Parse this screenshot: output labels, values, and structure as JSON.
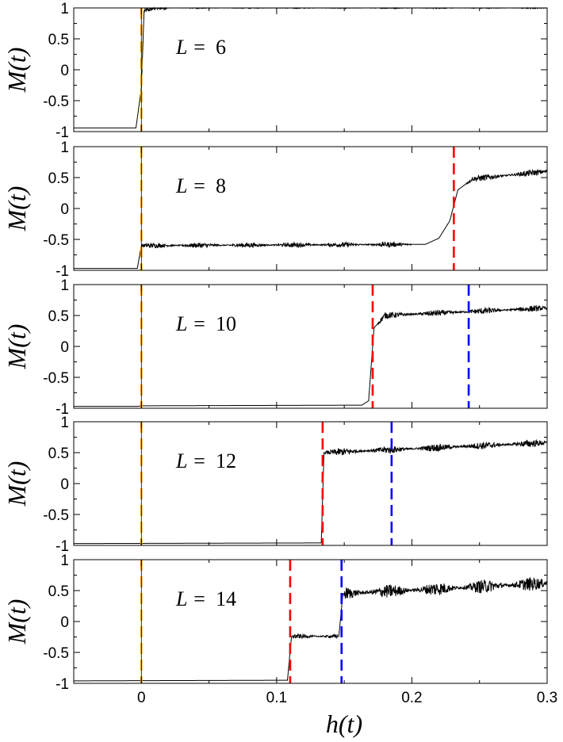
{
  "chart_data": {
    "type": "line",
    "xlabel": "h(t)",
    "ylabel": "M(t)",
    "xlim": [
      -0.05,
      0.3
    ],
    "ylim": [
      -1,
      1
    ],
    "x_ticks": [
      0,
      0.1,
      0.2,
      0.3
    ],
    "x_tick_labels": [
      "0",
      "0.1",
      "0.2",
      "0.3"
    ],
    "y_ticks": [
      1,
      0.5,
      0,
      -0.5,
      -1
    ],
    "y_tick_labels": [
      "1",
      "0.5",
      "0",
      "-0.5",
      "-1"
    ],
    "grid": false,
    "colors": {
      "trace": "#000000",
      "orange": "#FFA500",
      "red": "#FF0000",
      "blue": "#0000FF"
    },
    "panels": [
      {
        "label_prefix": "L =",
        "L": "6",
        "trace": [
          [
            -0.05,
            -0.94
          ],
          [
            -0.004,
            -0.94
          ],
          [
            0,
            -0.3
          ],
          [
            0.002,
            0.95
          ],
          [
            0.01,
            1.0
          ],
          [
            0.3,
            1.0
          ]
        ],
        "noise": [
          [
            0.002,
            0.02,
            0.04
          ],
          [
            0.02,
            0.3,
            0.012
          ]
        ],
        "vlines": [
          {
            "x": 0,
            "color": "orange"
          }
        ]
      },
      {
        "label_prefix": "L =",
        "L": "8",
        "trace": [
          [
            -0.05,
            -0.97
          ],
          [
            -0.003,
            -0.97
          ],
          [
            0,
            -0.6
          ],
          [
            0.21,
            -0.58
          ],
          [
            0.22,
            -0.48
          ],
          [
            0.228,
            -0.2
          ],
          [
            0.234,
            0.3
          ],
          [
            0.245,
            0.48
          ],
          [
            0.3,
            0.6
          ]
        ],
        "noise": [
          [
            0.0,
            0.2,
            0.04
          ],
          [
            0.24,
            0.3,
            0.05
          ]
        ],
        "vlines": [
          {
            "x": 0,
            "color": "orange"
          },
          {
            "x": 0.231,
            "color": "red"
          }
        ]
      },
      {
        "label_prefix": "L =",
        "L": "10",
        "trace": [
          [
            -0.05,
            -0.97
          ],
          [
            -0.003,
            -0.97
          ],
          [
            0,
            -0.96
          ],
          [
            0.163,
            -0.95
          ],
          [
            0.168,
            -0.88
          ],
          [
            0.172,
            0.3
          ],
          [
            0.18,
            0.5
          ],
          [
            0.3,
            0.62
          ]
        ],
        "noise": [
          [
            0.175,
            0.3,
            0.05
          ]
        ],
        "vlines": [
          {
            "x": 0,
            "color": "orange"
          },
          {
            "x": 0.171,
            "color": "red"
          },
          {
            "x": 0.242,
            "color": "blue"
          }
        ]
      },
      {
        "label_prefix": "L =",
        "L": "12",
        "trace": [
          [
            -0.05,
            -0.97
          ],
          [
            0.133,
            -0.96
          ],
          [
            0.135,
            0.5
          ],
          [
            0.3,
            0.66
          ]
        ],
        "noise": [
          [
            0.136,
            0.3,
            0.06
          ]
        ],
        "vlines": [
          {
            "x": 0,
            "color": "orange"
          },
          {
            "x": 0.134,
            "color": "red"
          },
          {
            "x": 0.185,
            "color": "blue"
          }
        ]
      },
      {
        "label_prefix": "L =",
        "L": "14",
        "trace": [
          [
            -0.05,
            -0.96
          ],
          [
            0.108,
            -0.95
          ],
          [
            0.111,
            -0.24
          ],
          [
            0.146,
            -0.24
          ],
          [
            0.149,
            0.45
          ],
          [
            0.3,
            0.62
          ]
        ],
        "noise": [
          [
            0.112,
            0.145,
            0.04
          ],
          [
            0.15,
            0.3,
            0.11
          ]
        ],
        "vlines": [
          {
            "x": 0,
            "color": "orange"
          },
          {
            "x": 0.11,
            "color": "red"
          },
          {
            "x": 0.148,
            "color": "blue"
          }
        ]
      }
    ]
  }
}
